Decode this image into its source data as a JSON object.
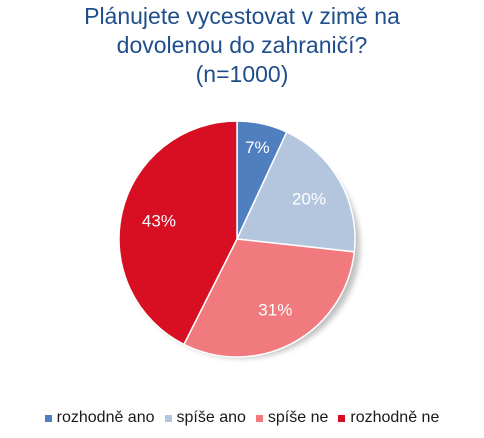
{
  "chart_data": {
    "type": "pie",
    "title_lines": [
      "Plánujete vycestovat v zimě na",
      "dovolenou do zahraničí?",
      "(n=1000)"
    ],
    "categories": [
      "rozhodně ano",
      "spíše ano",
      "spíše ne",
      "rozhodně ne"
    ],
    "values": [
      7,
      20,
      31,
      43
    ],
    "data_labels": [
      "7%",
      "20%",
      "31%",
      "43%"
    ],
    "colors": [
      "#4f7fbf",
      "#b4c6de",
      "#f07a7e",
      "#d80e22"
    ],
    "legend_position": "bottom",
    "start_angle": "12 o'clock, clockwise"
  }
}
